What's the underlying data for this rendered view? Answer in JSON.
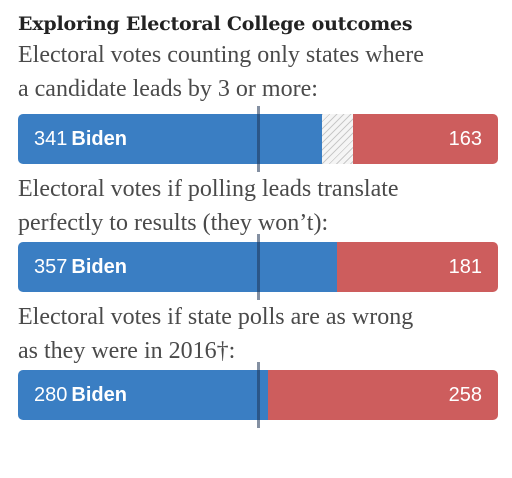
{
  "headline": "Exploring Electoral College outcomes",
  "colors": {
    "dem": "#3a7ec3",
    "rep": "#cd5d5d",
    "tossup": "hatched-gray",
    "threshold_line": "#1f3556"
  },
  "chart_data": [
    {
      "type": "bar",
      "orientation": "horizontal-stacked",
      "title": "Electoral votes counting only states where a candidate leads by 3 or more:",
      "title_lines": [
        "Electoral votes counting only states where",
        "a candidate leads by 3 or more:"
      ],
      "total": 538,
      "threshold": 270,
      "series": [
        {
          "name": "Biden",
          "values": [
            341
          ]
        },
        {
          "name": "Toss-up",
          "values": [
            34
          ]
        },
        {
          "name": "",
          "values": [
            163
          ]
        }
      ],
      "dem_value": "341",
      "dem_name": "Biden",
      "rep_value": "163"
    },
    {
      "type": "bar",
      "orientation": "horizontal-stacked",
      "title": "Electoral votes if polling leads translate perfectly to results (they won’t):",
      "title_lines": [
        "Electoral votes if polling leads translate",
        "perfectly to results (they won’t):"
      ],
      "total": 538,
      "threshold": 270,
      "series": [
        {
          "name": "Biden",
          "values": [
            357
          ]
        },
        {
          "name": "",
          "values": [
            181
          ]
        }
      ],
      "dem_value": "357",
      "dem_name": "Biden",
      "rep_value": "181"
    },
    {
      "type": "bar",
      "orientation": "horizontal-stacked",
      "title": "Electoral votes if state polls are as wrong as they were in 2016†:",
      "title_lines": [
        "Electoral votes if state polls are as wrong",
        "as they were in 2016†:"
      ],
      "total": 538,
      "threshold": 270,
      "series": [
        {
          "name": "Biden",
          "values": [
            280
          ]
        },
        {
          "name": "",
          "values": [
            258
          ]
        }
      ],
      "dem_value": "280",
      "dem_name": "Biden",
      "rep_value": "258"
    }
  ]
}
